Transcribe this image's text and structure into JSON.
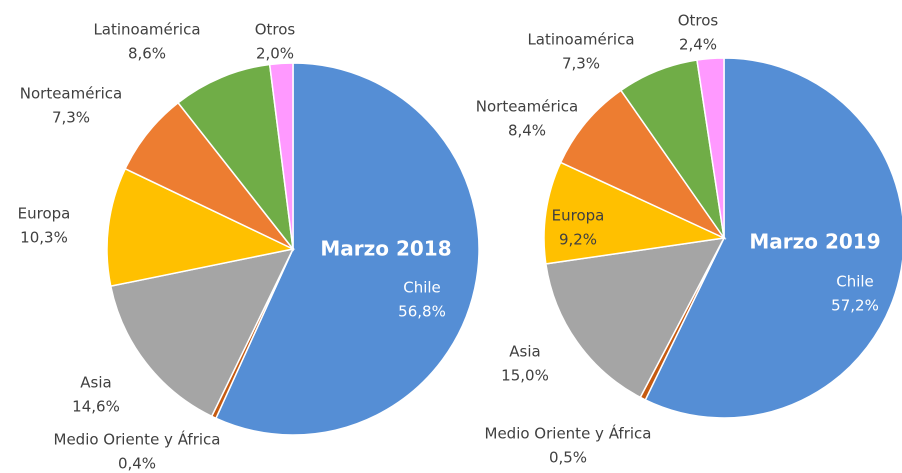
{
  "chart_data": [
    {
      "type": "pie",
      "title": "Marzo 2018",
      "categories": [
        "Chile",
        "Medio Oriente y África",
        "Asia",
        "Europa",
        "Norteamérica",
        "Latinoamérica",
        "Otros"
      ],
      "values": [
        56.8,
        0.4,
        14.6,
        10.3,
        7.3,
        8.6,
        2.0
      ],
      "value_labels": [
        "56,8%",
        "0,4%",
        "14,6%",
        "10,3%",
        "7,3%",
        "8,6%",
        "2,0%"
      ],
      "colors": [
        "#558ed5",
        "#c55a11",
        "#a5a5a5",
        "#ffc000",
        "#ed7d31",
        "#70ad47",
        "#ff99ff"
      ]
    },
    {
      "type": "pie",
      "title": "Marzo 2019",
      "categories": [
        "Chile",
        "Medio Oriente y África",
        "Asia",
        "Europa",
        "Norteamérica",
        "Latinoamérica",
        "Otros"
      ],
      "values": [
        57.2,
        0.5,
        15.0,
        9.2,
        8.4,
        7.3,
        2.4
      ],
      "value_labels": [
        "57,2%",
        "0,5%",
        "15,0%",
        "9,2%",
        "8,4%",
        "7,3%",
        "2,4%"
      ],
      "colors": [
        "#558ed5",
        "#c55a11",
        "#a5a5a5",
        "#ffc000",
        "#ed7d31",
        "#70ad47",
        "#ff99ff"
      ]
    }
  ]
}
